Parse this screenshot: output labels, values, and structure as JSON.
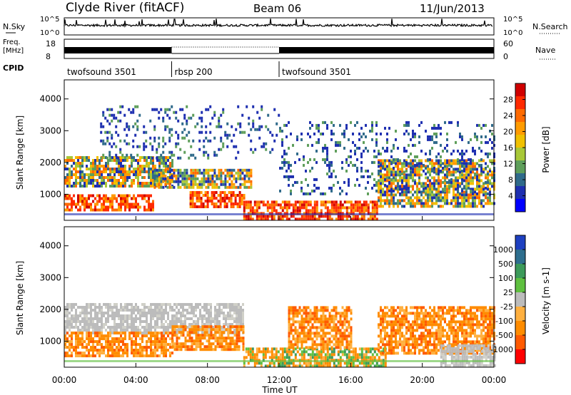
{
  "header": {
    "station": "Clyde River (fitACF)",
    "beam": "Beam 06",
    "date": "11/Jun/2013"
  },
  "strips": {
    "nsky_label": "N.Sky",
    "nsearch_label": "N.Search",
    "nsky_ticks": [
      "10^5",
      "10^0"
    ],
    "nsearch_ticks": [
      "10^5",
      "10^0"
    ],
    "freq_label": "Freq.",
    "freq_unit": "[MHz]",
    "freq_ticks": [
      "18",
      "8"
    ],
    "nave_label": "Nave",
    "nave_ticks": [
      "60",
      "0"
    ],
    "cpid_label": "CPID",
    "cpid_segments": [
      {
        "name": "twofsound 3501",
        "start": 0,
        "end": 6
      },
      {
        "name": "rbsp 200",
        "start": 6,
        "end": 12
      },
      {
        "name": "twofsound 3501",
        "start": 12,
        "end": 24
      }
    ]
  },
  "chart_data": [
    {
      "type": "heatmap",
      "name": "power",
      "ylabel": "Slant Range [km]",
      "xlim": [
        0,
        24
      ],
      "ylim": [
        180,
        4600
      ],
      "yticks": [
        1000,
        2000,
        3000,
        4000
      ],
      "colorbar": {
        "label": "Power [dB]",
        "ticks": [
          "28",
          "24",
          "20",
          "16",
          "12",
          "8",
          "4"
        ],
        "colors": [
          "#d00000",
          "#ff2a00",
          "#ff6a00",
          "#ff9b00",
          "#f0c000",
          "#a8c838",
          "#5e9e5a",
          "#2f6a8a",
          "#1e2fb0",
          "#0000ff"
        ]
      },
      "bands": [
        {
          "t0": 0.0,
          "t1": 6.0,
          "r0": 1300,
          "r1": 2200,
          "level": "mid"
        },
        {
          "t0": 0.0,
          "t1": 5.0,
          "r0": 550,
          "r1": 1000,
          "level": "high"
        },
        {
          "t0": 5.0,
          "t1": 10.5,
          "r0": 1200,
          "r1": 1800,
          "level": "mid"
        },
        {
          "t0": 7.0,
          "t1": 10.0,
          "r0": 600,
          "r1": 1100,
          "level": "high"
        },
        {
          "t0": 10.0,
          "t1": 17.5,
          "r0": 250,
          "r1": 800,
          "level": "high"
        },
        {
          "t0": 17.5,
          "t1": 24.0,
          "r0": 600,
          "r1": 2100,
          "level": "mid"
        },
        {
          "t0": 2.0,
          "t1": 12.0,
          "r0": 2100,
          "r1": 3800,
          "level": "low"
        },
        {
          "t0": 12.0,
          "t1": 24.0,
          "r0": 1000,
          "r1": 3300,
          "level": "low"
        }
      ]
    },
    {
      "type": "heatmap",
      "name": "velocity",
      "ylabel": "Slant Range [km]",
      "xlabel": "Time UT",
      "xlim": [
        0,
        24
      ],
      "ylim": [
        180,
        4600
      ],
      "xticks": [
        "00:00",
        "04:00",
        "08:00",
        "12:00",
        "16:00",
        "20:00",
        "00:00"
      ],
      "yticks": [
        1000,
        2000,
        3000,
        4000
      ],
      "colorbar": {
        "label": "Velocity [m s-1]",
        "ticks": [
          "1000",
          "500",
          "100",
          "25",
          "-25",
          "-100",
          "-500",
          "-1000"
        ],
        "colors": [
          "#1e40c0",
          "#2e6e8e",
          "#3c9a5a",
          "#5fc040",
          "#bcbcbc",
          "#ffb040",
          "#ff8c00",
          "#ff5a00",
          "#ff0000"
        ]
      },
      "bands": [
        {
          "t0": 0.0,
          "t1": 10.0,
          "r0": 1300,
          "r1": 2200,
          "level": "gray"
        },
        {
          "t0": 0.0,
          "t1": 6.0,
          "r0": 500,
          "r1": 1300,
          "level": "orange"
        },
        {
          "t0": 6.0,
          "t1": 10.0,
          "r0": 700,
          "r1": 1500,
          "level": "orange"
        },
        {
          "t0": 10.0,
          "t1": 18.0,
          "r0": 250,
          "r1": 800,
          "level": "orangegreen"
        },
        {
          "t0": 12.5,
          "t1": 16.0,
          "r0": 800,
          "r1": 2100,
          "level": "orange"
        },
        {
          "t0": 17.5,
          "t1": 24.0,
          "r0": 600,
          "r1": 2100,
          "level": "orange"
        },
        {
          "t0": 21.0,
          "t1": 24.0,
          "r0": 250,
          "r1": 900,
          "level": "gray"
        }
      ]
    }
  ]
}
